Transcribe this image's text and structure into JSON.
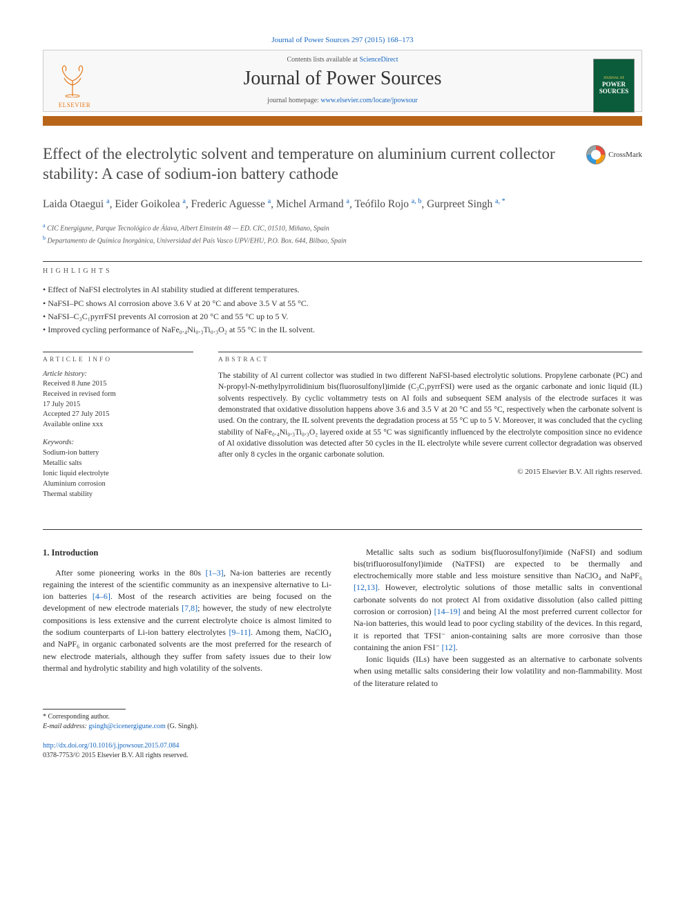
{
  "citation": "Journal of Power Sources 297 (2015) 168–173",
  "header": {
    "contents_prefix": "Contents lists available at ",
    "contents_link": "ScienceDirect",
    "journal": "Journal of Power Sources",
    "homepage_prefix": "journal homepage: ",
    "homepage_url": "www.elsevier.com/locate/jpowsour",
    "publisher_word": "ELSEVIER",
    "cover_top": "JOURNAL OF",
    "cover_main": "POWER SOURCES"
  },
  "crossmark_label": "CrossMark",
  "title": "Effect of the electrolytic solvent and temperature on aluminium current collector stability: A case of sodium-ion battery cathode",
  "authors_html": "Laida Otaegui <sup>a</sup>, Eider Goikolea <sup>a</sup>, Frederic Aguesse <sup>a</sup>, Michel Armand <sup>a</sup>, Teófilo Rojo <sup>a, b</sup>, Gurpreet Singh <sup>a, *</sup>",
  "affiliations": {
    "a": "CIC Energigune, Parque Tecnológico de Álava, Albert Einstein 48 — ED. CIC, 01510, Miñano, Spain",
    "b": "Departamento de Química Inorgánica, Universidad del País Vasco UPV/EHU, P.O. Box. 644, Bilbao, Spain"
  },
  "highlights_label": "HIGHLIGHTS",
  "highlights": [
    "Effect of NaFSI electrolytes in Al stability studied at different temperatures.",
    "NaFSI–PC shows Al corrosion above 3.6 V at 20 °C and above 3.5 V at 55 °C.",
    "NaFSI–C₃C₁pyrrFSI prevents Al corrosion at 20 °C and 55 °C up to 5 V.",
    "Improved cycling performance of NaFe₀.₄Ni₀.₃Ti₀.₃O₂ at 55 °C in the IL solvent."
  ],
  "article_info": {
    "label": "ARTICLE INFO",
    "history_label": "Article history:",
    "history": [
      "Received 8 June 2015",
      "Received in revised form",
      "17 July 2015",
      "Accepted 27 July 2015",
      "Available online xxx"
    ],
    "keywords_label": "Keywords:",
    "keywords": [
      "Sodium-ion battery",
      "Metallic salts",
      "Ionic liquid electrolyte",
      "Aluminium corrosion",
      "Thermal stability"
    ]
  },
  "abstract": {
    "label": "ABSTRACT",
    "text": "The stability of Al current collector was studied in two different NaFSI-based electrolytic solutions. Propylene carbonate (PC) and N-propyl-N-methylpyrrolidinium bis(fluorosulfonyl)imide (C₃C₁pyrrFSI) were used as the organic carbonate and ionic liquid (IL) solvents respectively. By cyclic voltammetry tests on Al foils and subsequent SEM analysis of the electrode surfaces it was demonstrated that oxidative dissolution happens above 3.6 and 3.5 V at 20 °C and 55 °C, respectively when the carbonate solvent is used. On the contrary, the IL solvent prevents the degradation process at 55 °C up to 5 V. Moreover, it was concluded that the cycling stability of NaFe₀.₄Ni₀.₃Ti₀.₃O₂ layered oxide at 55 °C was significantly influenced by the electrolyte composition since no evidence of Al oxidative dissolution was detected after 50 cycles in the IL electrolyte while severe current collector degradation was observed after only 8 cycles in the organic carbonate solution.",
    "copyright": "© 2015 Elsevier B.V. All rights reserved."
  },
  "intro": {
    "heading": "1. Introduction",
    "p1_a": "After some pioneering works in the 80s ",
    "p1_ref1": "[1–3]",
    "p1_b": ", Na-ion batteries are recently regaining the interest of the scientific community as an inexpensive alternative to Li-ion batteries ",
    "p1_ref2": "[4–6]",
    "p1_c": ". Most of the research activities are being focused on the development of new electrode materials ",
    "p1_ref3": "[7,8]",
    "p1_d": "; however, the study of new electrolyte compositions is less extensive and the current electrolyte choice is almost limited to the sodium counterparts of Li-ion battery electrolytes ",
    "p1_ref4": "[9–11]",
    "p1_e": ". Among them, NaClO₄ and NaPF₆ in organic carbonated solvents are the most preferred for the research of new electrode materials, although they suffer from safety issues due to",
    "p1_f": "their low thermal and hydrolytic stability and high volatility of the solvents.",
    "p2_a": "Metallic salts such as sodium bis(fluorosulfonyl)imide (NaFSI) and sodium bis(trifluorosulfonyl)imide (NaTFSI) are expected to be thermally and electrochemically more stable and less moisture sensitive than NaClO₄ and NaPF₆ ",
    "p2_ref1": "[12,13]",
    "p2_b": ". However, electrolytic solutions of those metallic salts in conventional carbonate solvents do not protect Al from oxidative dissolution (also called pitting corrosion or corrosion) ",
    "p2_ref2": "[14–19]",
    "p2_c": " and being Al the most preferred current collector for Na-ion batteries, this would lead to poor cycling stability of the devices. In this regard, it is reported that TFSI⁻ anion-containing salts are more corrosive than those containing the anion FSI⁻ ",
    "p2_ref3": "[12]",
    "p2_d": ".",
    "p3": "Ionic liquids (ILs) have been suggested as an alternative to carbonate solvents when using metallic salts considering their low volatility and non-flammability. Most of the literature related to"
  },
  "footer": {
    "corresponding": "* Corresponding author.",
    "email_label": "E-mail address: ",
    "email": "gsingh@cicenergigune.com",
    "email_suffix": " (G. Singh).",
    "doi_url": "http://dx.doi.org/10.1016/j.jpowsour.2015.07.084",
    "issn_line": "0378-7753/© 2015 Elsevier B.V. All rights reserved."
  },
  "colors": {
    "link": "#1565c0",
    "orange_bar": "#b8651a",
    "elsevier_orange": "#e67817",
    "cover_green": "#0a5c3a"
  }
}
